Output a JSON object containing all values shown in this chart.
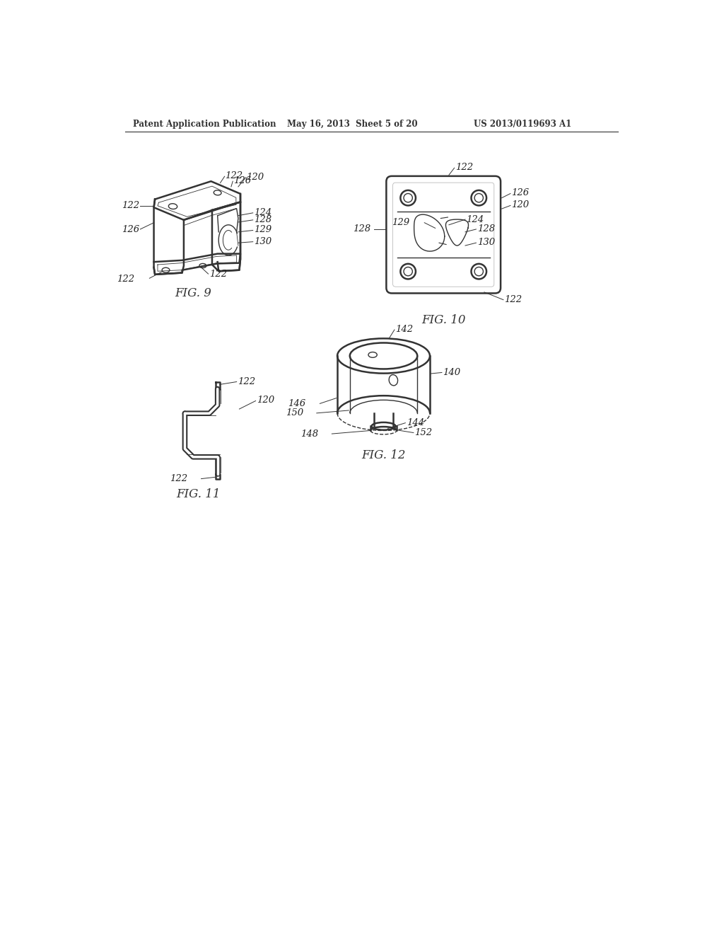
{
  "header_left": "Patent Application Publication",
  "header_mid": "May 16, 2013  Sheet 5 of 20",
  "header_right": "US 2013/0119693 A1",
  "bg_color": "#ffffff",
  "line_color": "#333333",
  "label_color": "#222222"
}
